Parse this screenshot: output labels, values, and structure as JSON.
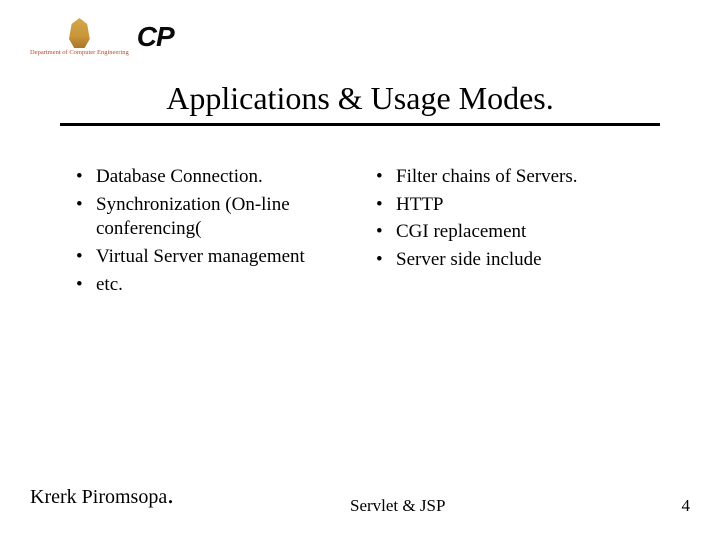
{
  "logo": {
    "dept_caption": "Department of Computer Engineering",
    "cp": "CP"
  },
  "title": "Applications & Usage Modes.",
  "left_bullets": [
    "Database Connection.",
    "Synchronization (On-line conferencing(",
    "Virtual Server management",
    "etc."
  ],
  "right_bullets": [
    "Filter chains of Servers.",
    "HTTP",
    "CGI replacement",
    "Server side include"
  ],
  "footer": {
    "author_name": "Krerk Piromsopa",
    "center": "Servlet & JSP",
    "page": "4"
  },
  "colors": {
    "text": "#000000",
    "background": "#ffffff",
    "dept_caption": "#b84a2e"
  },
  "fontsizes": {
    "title": 32,
    "bullet": 19,
    "author": 20,
    "footer": 17
  }
}
